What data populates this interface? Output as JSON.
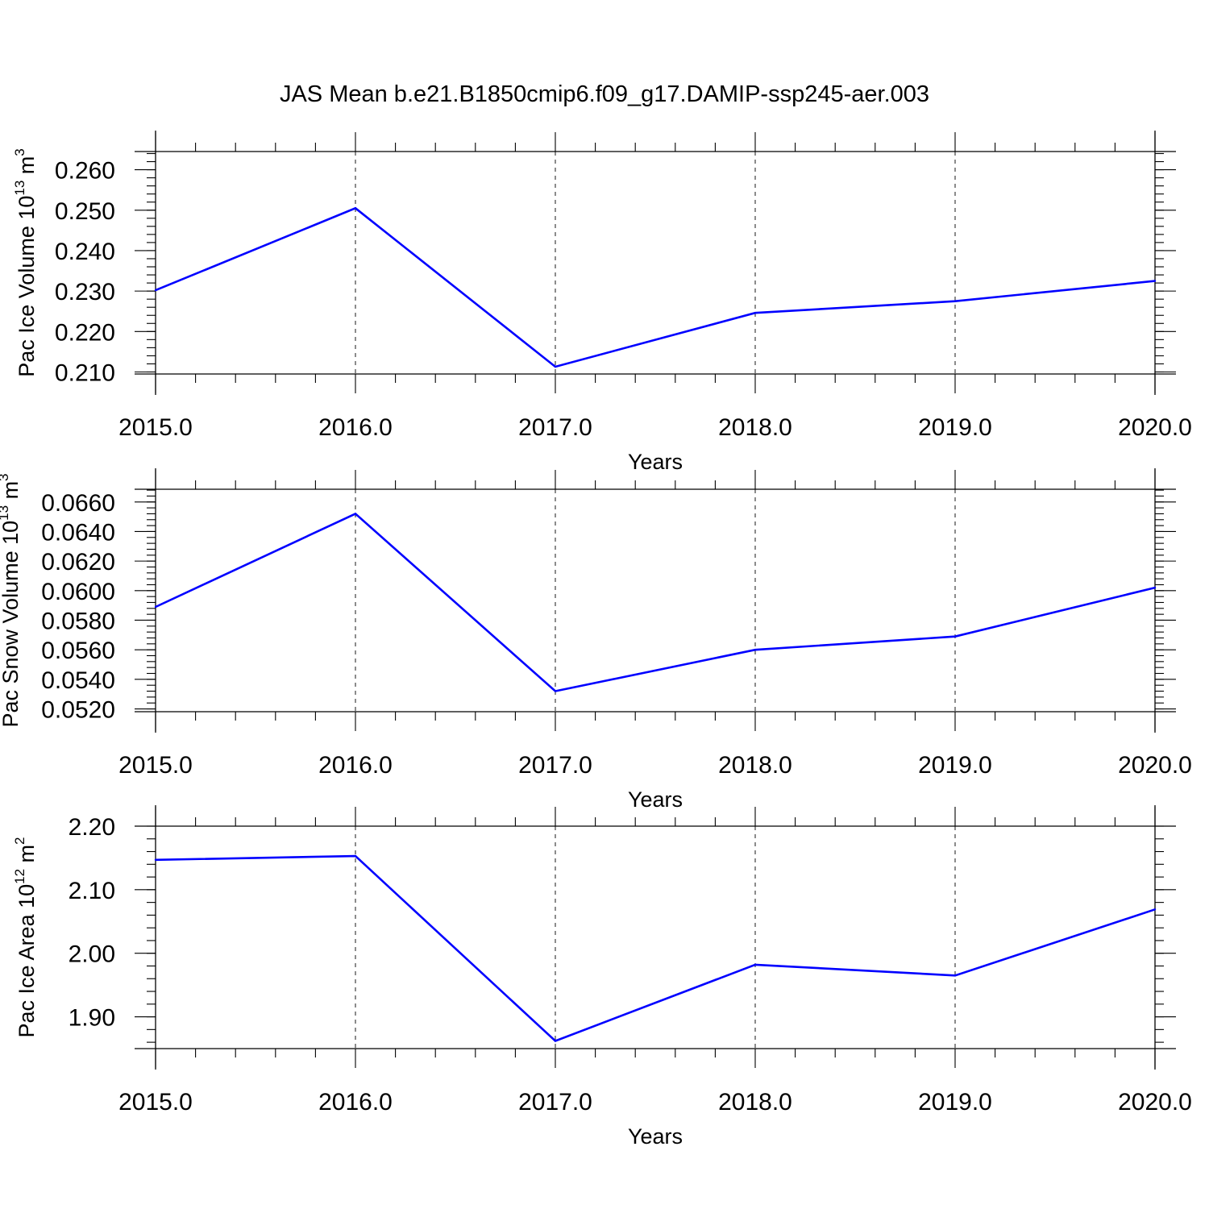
{
  "title": "JAS Mean b.e21.B1850cmip6.f09_g17.DAMIP-ssp245-aer.003",
  "chart_data": [
    {
      "type": "line",
      "ylabel": "Pac Ice Volume 10",
      "ylabel_exponent": "13",
      "ylabel_unit": " m",
      "ylabel_unit_exponent": "3",
      "xlabel": "Years",
      "xlim": [
        2015,
        2020
      ],
      "ylim": [
        0.2095,
        0.2645
      ],
      "x_ticks": [
        2015,
        2016,
        2017,
        2018,
        2019,
        2020
      ],
      "x_tick_labels": [
        "2015.0",
        "2016.0",
        "2017.0",
        "2018.0",
        "2019.0",
        "2020.0"
      ],
      "y_ticks": [
        0.21,
        0.22,
        0.23,
        0.24,
        0.25,
        0.26
      ],
      "y_tick_labels": [
        "0.210",
        "0.220",
        "0.230",
        "0.240",
        "0.250",
        "0.260"
      ],
      "y_minor_step": 0.002,
      "grid": "vertical dashed at major x ticks",
      "color": "#0000ff",
      "x": [
        2015,
        2016,
        2017,
        2018,
        2019,
        2020
      ],
      "y": [
        0.2302,
        0.2505,
        0.2113,
        0.2246,
        0.2275,
        0.2325
      ]
    },
    {
      "type": "line",
      "ylabel": "Pac Snow Volume 10",
      "ylabel_exponent": "13",
      "ylabel_unit": " m",
      "ylabel_unit_exponent": "3",
      "xlabel": "Years",
      "xlim": [
        2015,
        2020
      ],
      "ylim": [
        0.05181,
        0.06686
      ],
      "x_ticks": [
        2015,
        2016,
        2017,
        2018,
        2019,
        2020
      ],
      "x_tick_labels": [
        "2015.0",
        "2016.0",
        "2017.0",
        "2018.0",
        "2019.0",
        "2020.0"
      ],
      "y_ticks": [
        0.052,
        0.054,
        0.056,
        0.058,
        0.06,
        0.062,
        0.064,
        0.066
      ],
      "y_tick_labels": [
        "0.0520",
        "0.0540",
        "0.0560",
        "0.0580",
        "0.0600",
        "0.0620",
        "0.0640",
        "0.0660"
      ],
      "y_minor_step": 0.0004,
      "grid": "vertical dashed at major x ticks",
      "color": "#0000ff",
      "x": [
        2015,
        2016,
        2017,
        2018,
        2019,
        2020
      ],
      "y": [
        0.0589,
        0.0652,
        0.0532,
        0.056,
        0.0569,
        0.0602
      ]
    },
    {
      "type": "line",
      "ylabel": "Pac Ice Area 10",
      "ylabel_exponent": "12",
      "ylabel_unit": " m",
      "ylabel_unit_exponent": "2",
      "xlabel": "Years",
      "xlim": [
        2015,
        2020
      ],
      "ylim": [
        1.85,
        2.2
      ],
      "x_ticks": [
        2015,
        2016,
        2017,
        2018,
        2019,
        2020
      ],
      "x_tick_labels": [
        "2015.0",
        "2016.0",
        "2017.0",
        "2018.0",
        "2019.0",
        "2020.0"
      ],
      "y_ticks": [
        1.9,
        2.0,
        2.1,
        2.2
      ],
      "y_tick_labels": [
        "1.90",
        "2.00",
        "2.10",
        "2.20"
      ],
      "y_minor_step": 0.02,
      "grid": "vertical dashed at major x ticks",
      "color": "#0000ff",
      "x": [
        2015,
        2016,
        2017,
        2018,
        2019,
        2020
      ],
      "y": [
        2.147,
        2.153,
        1.862,
        1.982,
        1.965,
        2.069
      ]
    }
  ]
}
